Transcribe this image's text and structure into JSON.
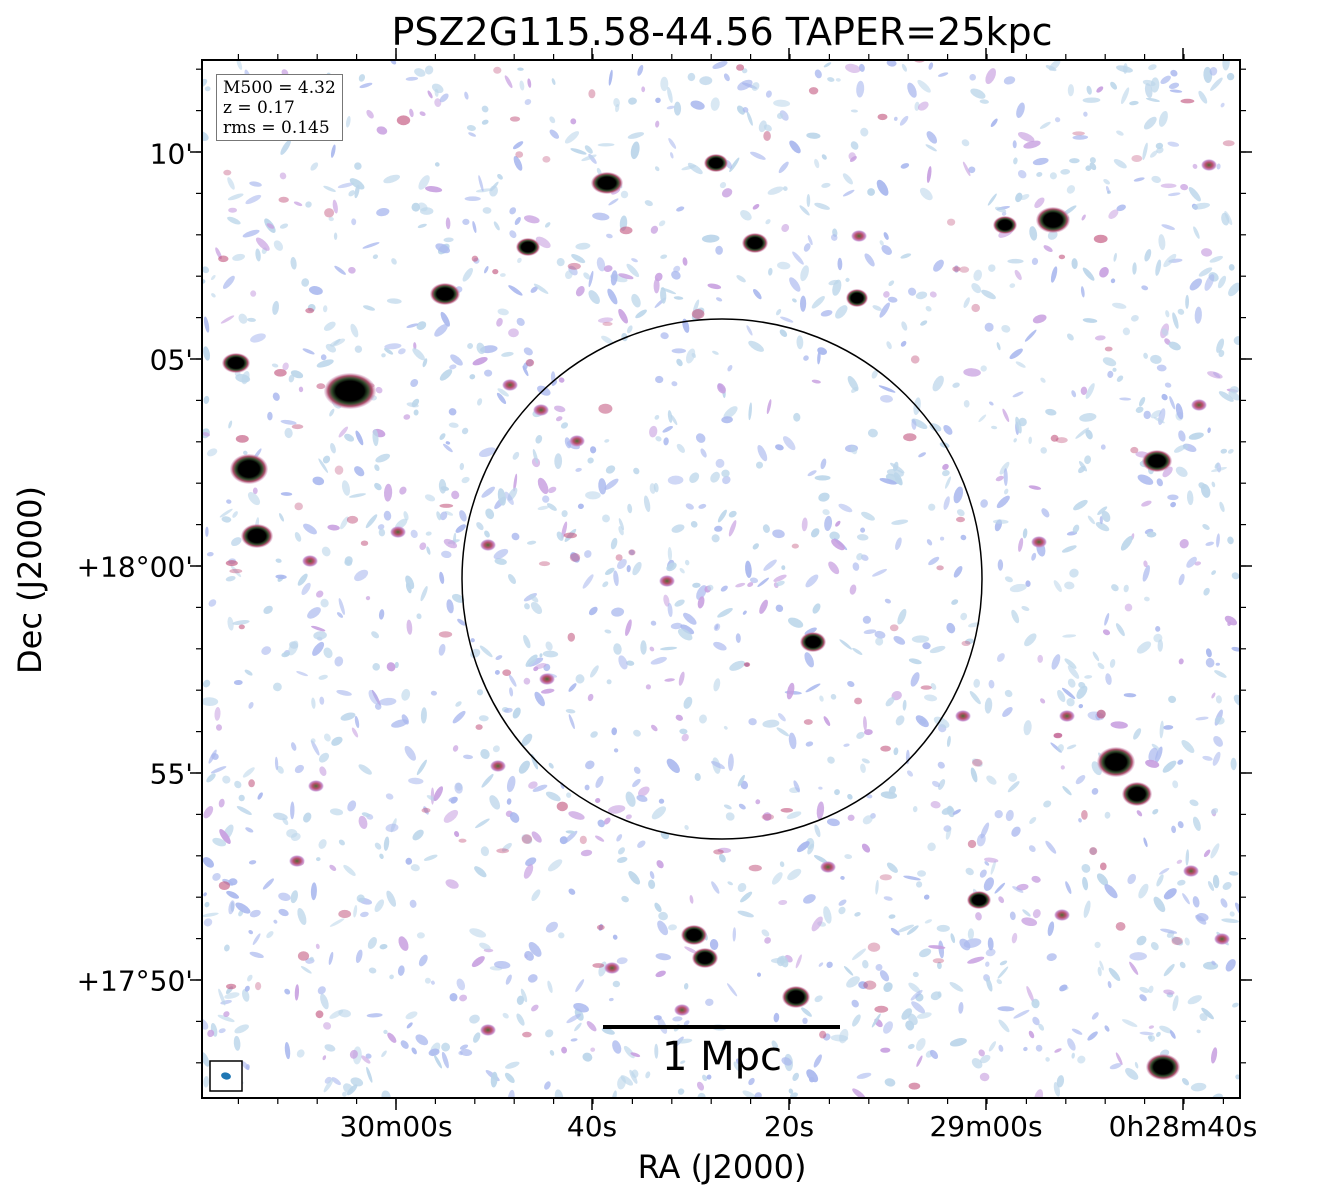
{
  "title": "PSZ2G115.58-44.56 TAPER=25kpc",
  "axes": {
    "xlabel": "RA (J2000)",
    "ylabel": "Dec (J2000)",
    "x_ticks": [
      "30m00s",
      "40s",
      "20s",
      "29m00s",
      "0h28m40s"
    ],
    "y_ticks": [
      "10'",
      "05'",
      "+18°00'",
      "55'",
      "+17°50'"
    ]
  },
  "info": {
    "m500": "M500 = 4.32",
    "z": "z = 0.17",
    "rms": "rms = 0.145"
  },
  "scalebar": {
    "label": "1 Mpc"
  },
  "colors": {
    "noise_light": "#bcd6ea",
    "noise_blue": "#aab8ee",
    "noise_violet": "#c8a0e0",
    "emission_magenta": "#c0507a",
    "emission_green": "#5a7a3a",
    "source_core": "#000000",
    "beam": "#1f77b4",
    "circle": "#000000"
  }
}
